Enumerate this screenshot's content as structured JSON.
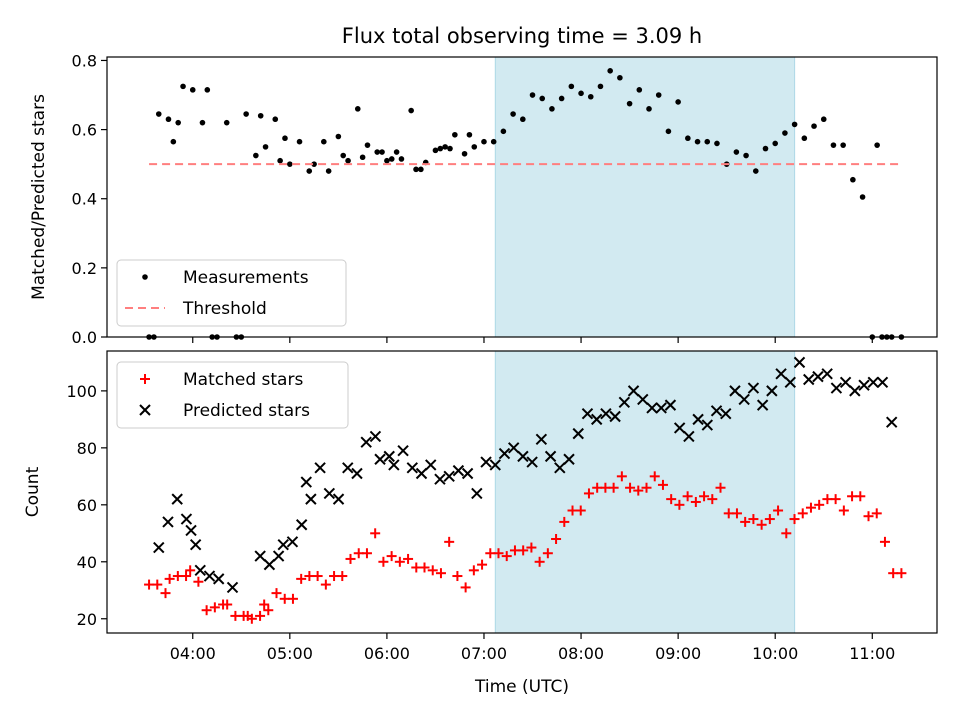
{
  "figure": {
    "title": "Flux total observing time = 3.09 h"
  },
  "colors": {
    "shade": "#add8e6",
    "measurement": "#000000",
    "threshold": "#ff7f7f",
    "matched": "#ff0000",
    "predicted": "#000000"
  },
  "chart_data": [
    {
      "type": "scatter",
      "ylabel": "Matched/Predicted stars",
      "xlabel": "",
      "xlim": [
        "03:07",
        "11:40"
      ],
      "ylim": [
        0,
        0.81
      ],
      "yticks": [
        "0.0",
        "0.2",
        "0.4",
        "0.6",
        "0.8"
      ],
      "shaded_span": [
        "07:07",
        "10:12"
      ],
      "threshold": 0.5,
      "legend": {
        "position": "lower-left",
        "entries": [
          "Measurements",
          "Threshold"
        ]
      },
      "series": [
        {
          "name": "Measurements",
          "marker": "dot",
          "x": [
            "03:33",
            "03:36",
            "03:39",
            "03:45",
            "03:48",
            "03:51",
            "03:54",
            "04:00",
            "04:06",
            "04:09",
            "04:12",
            "04:15",
            "04:21",
            "04:27",
            "04:30",
            "04:33",
            "04:39",
            "04:42",
            "04:45",
            "04:51",
            "04:54",
            "04:57",
            "05:00",
            "05:06",
            "05:12",
            "05:15",
            "05:21",
            "05:24",
            "05:30",
            "05:33",
            "05:36",
            "05:42",
            "05:45",
            "05:48",
            "05:54",
            "05:57",
            "06:00",
            "06:03",
            "06:06",
            "06:09",
            "06:15",
            "06:18",
            "06:21",
            "06:24",
            "06:30",
            "06:33",
            "06:36",
            "06:39",
            "06:42",
            "06:48",
            "06:51",
            "06:54",
            "07:00",
            "07:06",
            "07:12",
            "07:18",
            "07:24",
            "07:30",
            "07:36",
            "07:42",
            "07:48",
            "07:54",
            "08:00",
            "08:06",
            "08:12",
            "08:18",
            "08:24",
            "08:30",
            "08:36",
            "08:42",
            "08:48",
            "08:54",
            "09:00",
            "09:06",
            "09:12",
            "09:18",
            "09:24",
            "09:30",
            "09:36",
            "09:42",
            "09:48",
            "09:54",
            "10:00",
            "10:06",
            "10:12",
            "10:18",
            "10:24",
            "10:30",
            "10:36",
            "10:42",
            "10:48",
            "10:54",
            "11:00",
            "11:03",
            "11:06",
            "11:09",
            "11:12",
            "11:18"
          ],
          "y": [
            0.0,
            0.0,
            0.645,
            0.63,
            0.565,
            0.62,
            0.725,
            0.715,
            0.62,
            0.715,
            0.0,
            0.0,
            0.62,
            0.0,
            0.0,
            0.645,
            0.525,
            0.64,
            0.55,
            0.63,
            0.51,
            0.575,
            0.5,
            0.565,
            0.48,
            0.5,
            0.565,
            0.48,
            0.58,
            0.525,
            0.51,
            0.66,
            0.52,
            0.555,
            0.535,
            0.535,
            0.51,
            0.515,
            0.535,
            0.515,
            0.655,
            0.485,
            0.485,
            0.505,
            0.54,
            0.545,
            0.55,
            0.545,
            0.585,
            0.53,
            0.585,
            0.55,
            0.565,
            0.565,
            0.595,
            0.645,
            0.63,
            0.7,
            0.69,
            0.66,
            0.69,
            0.725,
            0.705,
            0.695,
            0.725,
            0.77,
            0.75,
            0.675,
            0.715,
            0.66,
            0.7,
            0.595,
            0.68,
            0.575,
            0.565,
            0.565,
            0.56,
            0.5,
            0.535,
            0.525,
            0.48,
            0.545,
            0.56,
            0.59,
            0.615,
            0.575,
            0.61,
            0.63,
            0.555,
            0.555,
            0.455,
            0.405,
            0.0,
            0.555,
            0.0,
            0.0,
            0.0,
            0.0
          ]
        },
        {
          "name": "Threshold",
          "style": "dashed",
          "x": [
            "03:33",
            "11:18"
          ],
          "y": [
            0.5,
            0.5
          ]
        }
      ]
    },
    {
      "type": "scatter",
      "ylabel": "Count",
      "xlabel": "Time (UTC)",
      "xlim": [
        "03:07",
        "11:40"
      ],
      "ylim": [
        15,
        114
      ],
      "yticks": [
        "20",
        "40",
        "60",
        "80",
        "100"
      ],
      "xticks": [
        "04:00",
        "05:00",
        "06:00",
        "07:00",
        "08:00",
        "09:00",
        "10:00",
        "11:00"
      ],
      "shaded_span": [
        "07:07",
        "10:12"
      ],
      "legend": {
        "position": "upper-left",
        "entries": [
          "Matched stars",
          "Predicted stars"
        ]
      },
      "series": [
        {
          "name": "Matched stars",
          "marker": "plus",
          "x": [
            "03:33",
            "03:39",
            "03:45",
            "03:48",
            "03:54",
            "04:00",
            "04:03",
            "04:09",
            "04:15",
            "04:21",
            "04:27",
            "04:30",
            "04:36",
            "04:42",
            "04:45",
            "04:48",
            "04:54",
            "04:57",
            "05:00",
            "05:06",
            "05:12",
            "05:18",
            "05:24",
            "05:30",
            "05:36",
            "05:42",
            "05:48",
            "05:54",
            "06:00",
            "06:06",
            "06:12",
            "06:18",
            "06:24",
            "06:30",
            "06:36",
            "06:42",
            "06:48",
            "06:54",
            "07:00",
            "07:06",
            "07:12",
            "07:18",
            "07:24",
            "07:30",
            "07:36",
            "07:42",
            "07:48",
            "07:54",
            "08:00",
            "08:06",
            "08:12",
            "08:18",
            "08:24",
            "08:30",
            "08:36",
            "08:42",
            "08:48",
            "08:54",
            "09:00",
            "09:06",
            "09:12",
            "09:18",
            "09:24",
            "09:30",
            "09:36",
            "09:42",
            "09:48",
            "09:54",
            "10:00",
            "10:06",
            "10:12",
            "10:18",
            "10:24",
            "10:30",
            "10:36",
            "10:42",
            "10:48",
            "10:54",
            "11:00",
            "11:06",
            "11:12",
            "11:18"
          ],
          "y": [
            32,
            32,
            29,
            34,
            35,
            35,
            37,
            33,
            23,
            24,
            25,
            25,
            21,
            21,
            21,
            20,
            21,
            25,
            23,
            29,
            27,
            27,
            34,
            35,
            35,
            32,
            35,
            35,
            41,
            43,
            43,
            50,
            40,
            42,
            40,
            41,
            38,
            38,
            37,
            36,
            47,
            35,
            31,
            37,
            39,
            43,
            43,
            42,
            44,
            44,
            45,
            40,
            43,
            48,
            54,
            58,
            58,
            64,
            66,
            66,
            66,
            70,
            66,
            65,
            66,
            70,
            67,
            62,
            60,
            63,
            61,
            63,
            62,
            66,
            57,
            57,
            54,
            55,
            53,
            55,
            58,
            50
          ],
          "yextra": [
            55,
            57,
            59,
            60,
            62,
            62,
            58,
            63,
            63,
            56,
            57,
            47,
            36,
            36
          ]
        },
        {
          "name": "Predicted stars",
          "marker": "x",
          "x": [
            "03:39",
            "03:45",
            "03:51",
            "03:57",
            "04:00",
            "04:03",
            "04:06",
            "04:12",
            "04:18",
            "04:27",
            "04:45",
            "04:51",
            "04:57",
            "05:00",
            "05:06",
            "05:12",
            "05:15",
            "05:18",
            "05:24",
            "05:30",
            "05:36",
            "05:42",
            "05:48",
            "05:54",
            "06:00",
            "06:03",
            "06:09",
            "06:12",
            "06:18",
            "06:24",
            "06:30",
            "06:36",
            "06:42",
            "06:48",
            "06:54",
            "07:00",
            "07:06",
            "07:12",
            "07:18",
            "07:24",
            "07:30",
            "07:36",
            "07:42",
            "07:48",
            "07:54",
            "08:00",
            "08:06",
            "08:12",
            "08:18",
            "08:24",
            "08:30",
            "08:36",
            "08:42",
            "08:48",
            "08:54",
            "09:00",
            "09:06",
            "09:12",
            "09:18",
            "09:24",
            "09:30",
            "09:36",
            "09:42",
            "09:48",
            "09:54",
            "10:00",
            "10:06",
            "10:12",
            "10:18",
            "10:24",
            "10:30",
            "10:36",
            "10:42",
            "10:48",
            "10:54",
            "11:00",
            "11:06",
            "11:12"
          ],
          "y": [
            45,
            54,
            62,
            55,
            51,
            46,
            37,
            35,
            34,
            31,
            42,
            39,
            42,
            46,
            47,
            53,
            68,
            62,
            73,
            64,
            62,
            73,
            71,
            82,
            84,
            76,
            77,
            74,
            79,
            73,
            71,
            74,
            69,
            70,
            72,
            71,
            64,
            75,
            74,
            78,
            80,
            77,
            75,
            83,
            77,
            73,
            76,
            85,
            92,
            90,
            92,
            91,
            96,
            100,
            97,
            94,
            94,
            95,
            87,
            84,
            90,
            88,
            93,
            92,
            100,
            97,
            101,
            95,
            100,
            106,
            103,
            110,
            104,
            105,
            106,
            101,
            103,
            100
          ],
          "yextra": [
            102,
            103,
            103,
            89
          ]
        }
      ]
    }
  ]
}
